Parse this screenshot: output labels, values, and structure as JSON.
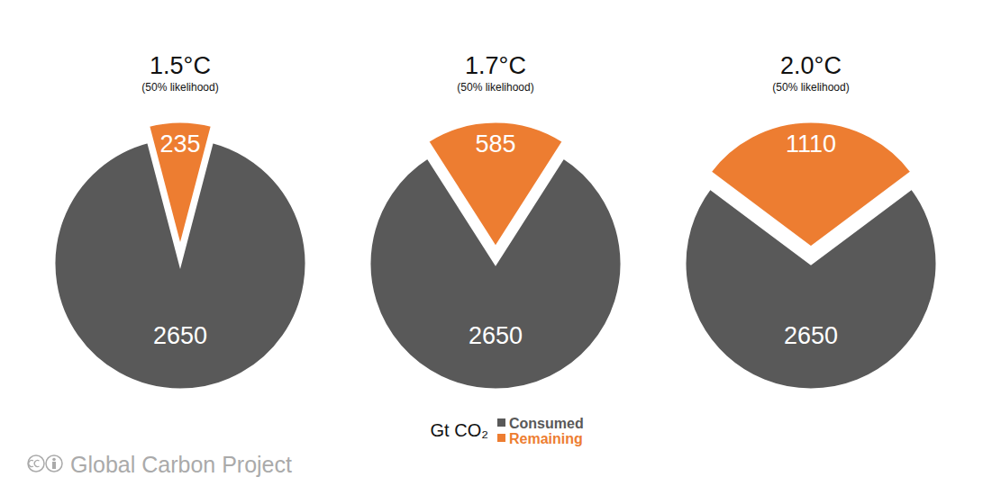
{
  "chart_data": [
    {
      "type": "pie",
      "title": "1.5°C",
      "subtitle": "(50% likelihood)",
      "categories": [
        "Consumed",
        "Remaining"
      ],
      "values": [
        2650,
        235
      ],
      "colors": [
        "#595959",
        "#ED7D31"
      ],
      "data_labels": true
    },
    {
      "type": "pie",
      "title": "1.7°C",
      "subtitle": "(50% likelihood)",
      "categories": [
        "Consumed",
        "Remaining"
      ],
      "values": [
        2650,
        585
      ],
      "colors": [
        "#595959",
        "#ED7D31"
      ],
      "data_labels": true,
      "legend": "bottom"
    },
    {
      "type": "pie",
      "title": "2.0°C",
      "subtitle": "(50% likelihood)",
      "categories": [
        "Consumed",
        "Remaining"
      ],
      "values": [
        2650,
        1110
      ],
      "colors": [
        "#595959",
        "#ED7D31"
      ],
      "data_labels": true
    }
  ],
  "annotations": [
    "Gt CO₂",
    "Global Carbon Project"
  ]
}
